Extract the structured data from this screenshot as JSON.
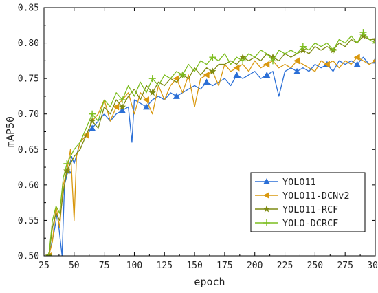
{
  "chart_data": {
    "type": "line",
    "title": "",
    "xlabel": "epoch",
    "ylabel": "mAP50",
    "xlim": [
      25,
      300
    ],
    "ylim": [
      0.5,
      0.85
    ],
    "xticks": [
      "25",
      "50",
      "75",
      "100",
      "125",
      "150",
      "175",
      "200",
      "225",
      "250",
      "275",
      "300"
    ],
    "yticks": [
      "0.50",
      "0.55",
      "0.60",
      "0.65",
      "0.70",
      "0.75",
      "0.80",
      "0.85"
    ],
    "grid": false,
    "legend_position": "bottom-right",
    "series": [
      {
        "name": "YOLO11",
        "color": "#2b6fd6",
        "marker": "triangle-up",
        "x": [
          29,
          33,
          36,
          40,
          42,
          45,
          48,
          50,
          55,
          60,
          65,
          70,
          75,
          80,
          85,
          90,
          95,
          98,
          100,
          105,
          110,
          115,
          120,
          125,
          130,
          135,
          140,
          145,
          150,
          155,
          160,
          165,
          170,
          175,
          180,
          185,
          190,
          195,
          200,
          205,
          210,
          215,
          220,
          225,
          230,
          235,
          240,
          245,
          250,
          255,
          260,
          265,
          270,
          275,
          280,
          285,
          290,
          295,
          300
        ],
        "y": [
          0.5,
          0.53,
          0.56,
          0.5,
          0.6,
          0.62,
          0.64,
          0.63,
          0.66,
          0.67,
          0.68,
          0.69,
          0.7,
          0.69,
          0.7,
          0.705,
          0.71,
          0.66,
          0.72,
          0.715,
          0.71,
          0.72,
          0.725,
          0.72,
          0.73,
          0.725,
          0.73,
          0.735,
          0.74,
          0.735,
          0.745,
          0.74,
          0.745,
          0.75,
          0.74,
          0.755,
          0.75,
          0.755,
          0.76,
          0.75,
          0.755,
          0.76,
          0.725,
          0.76,
          0.765,
          0.76,
          0.765,
          0.76,
          0.77,
          0.765,
          0.77,
          0.76,
          0.775,
          0.77,
          0.775,
          0.77,
          0.78,
          0.77,
          0.775
        ]
      },
      {
        "name": "YOLO11-DCNv2",
        "color": "#d9980f",
        "marker": "triangle-left",
        "x": [
          29,
          32,
          35,
          38,
          41,
          44,
          47,
          50,
          52,
          55,
          60,
          65,
          70,
          75,
          80,
          85,
          90,
          95,
          100,
          105,
          110,
          115,
          120,
          125,
          130,
          135,
          140,
          145,
          150,
          155,
          160,
          165,
          170,
          175,
          180,
          185,
          190,
          195,
          200,
          205,
          210,
          215,
          220,
          225,
          230,
          235,
          240,
          245,
          250,
          255,
          260,
          265,
          270,
          275,
          280,
          285,
          290,
          295,
          300
        ],
        "y": [
          0.5,
          0.52,
          0.57,
          0.54,
          0.6,
          0.62,
          0.65,
          0.55,
          0.64,
          0.66,
          0.67,
          0.69,
          0.7,
          0.72,
          0.69,
          0.71,
          0.72,
          0.73,
          0.7,
          0.73,
          0.72,
          0.7,
          0.74,
          0.72,
          0.74,
          0.75,
          0.73,
          0.755,
          0.71,
          0.75,
          0.755,
          0.76,
          0.74,
          0.77,
          0.76,
          0.765,
          0.77,
          0.76,
          0.775,
          0.765,
          0.77,
          0.775,
          0.765,
          0.77,
          0.765,
          0.775,
          0.77,
          0.765,
          0.76,
          0.775,
          0.77,
          0.775,
          0.765,
          0.775,
          0.77,
          0.78,
          0.775,
          0.77,
          0.775
        ]
      },
      {
        "name": "YOLO11-RCF",
        "color": "#7d8a12",
        "marker": "star",
        "x": [
          29,
          32,
          35,
          38,
          41,
          44,
          47,
          50,
          55,
          60,
          65,
          70,
          75,
          80,
          85,
          90,
          95,
          100,
          105,
          110,
          115,
          120,
          125,
          130,
          135,
          140,
          145,
          150,
          155,
          160,
          165,
          170,
          175,
          180,
          185,
          190,
          195,
          200,
          205,
          210,
          215,
          220,
          225,
          230,
          235,
          240,
          245,
          250,
          255,
          260,
          265,
          270,
          275,
          280,
          285,
          290,
          295,
          300
        ],
        "y": [
          0.5,
          0.54,
          0.56,
          0.55,
          0.59,
          0.62,
          0.63,
          0.64,
          0.65,
          0.67,
          0.69,
          0.68,
          0.71,
          0.7,
          0.72,
          0.71,
          0.725,
          0.735,
          0.72,
          0.74,
          0.73,
          0.745,
          0.74,
          0.75,
          0.745,
          0.755,
          0.75,
          0.765,
          0.755,
          0.765,
          0.76,
          0.77,
          0.77,
          0.775,
          0.77,
          0.78,
          0.775,
          0.78,
          0.775,
          0.785,
          0.78,
          0.775,
          0.785,
          0.78,
          0.785,
          0.79,
          0.785,
          0.795,
          0.79,
          0.795,
          0.79,
          0.8,
          0.795,
          0.805,
          0.8,
          0.81,
          0.805,
          0.805
        ]
      },
      {
        "name": "YOLO-DCRCF",
        "color": "#7cbd1e",
        "marker": "plus",
        "x": [
          29,
          32,
          35,
          38,
          41,
          44,
          47,
          50,
          55,
          60,
          65,
          70,
          75,
          80,
          85,
          90,
          95,
          100,
          105,
          110,
          115,
          120,
          125,
          130,
          135,
          140,
          145,
          150,
          155,
          160,
          165,
          170,
          175,
          180,
          185,
          190,
          195,
          200,
          205,
          210,
          215,
          220,
          225,
          230,
          235,
          240,
          245,
          250,
          255,
          260,
          265,
          270,
          275,
          280,
          285,
          290,
          295,
          300
        ],
        "y": [
          0.5,
          0.55,
          0.57,
          0.56,
          0.61,
          0.63,
          0.64,
          0.65,
          0.66,
          0.68,
          0.7,
          0.69,
          0.72,
          0.71,
          0.73,
          0.72,
          0.74,
          0.725,
          0.745,
          0.73,
          0.75,
          0.74,
          0.755,
          0.75,
          0.76,
          0.755,
          0.77,
          0.76,
          0.775,
          0.77,
          0.78,
          0.775,
          0.785,
          0.77,
          0.78,
          0.775,
          0.785,
          0.78,
          0.79,
          0.785,
          0.775,
          0.79,
          0.785,
          0.79,
          0.785,
          0.795,
          0.79,
          0.8,
          0.795,
          0.8,
          0.79,
          0.805,
          0.8,
          0.81,
          0.8,
          0.815,
          0.805,
          0.8
        ]
      }
    ]
  }
}
